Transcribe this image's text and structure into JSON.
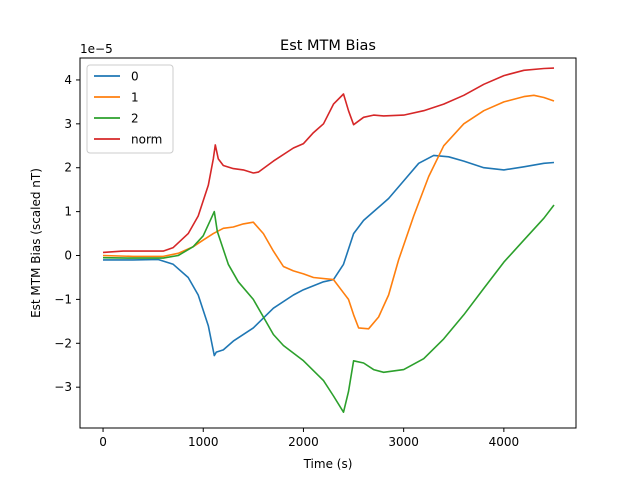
{
  "chart_data": {
    "type": "line",
    "title": "Est MTM Bias",
    "xlabel": "Time (s)",
    "ylabel": "Est MTM Bias (scaled nT)",
    "y_scale_label": "1e−5",
    "xlim": [
      -230,
      4720
    ],
    "ylim": [
      -3.93,
      4.5
    ],
    "x_ticks": [
      0,
      1000,
      2000,
      3000,
      4000
    ],
    "x_tick_labels": [
      "0",
      "1000",
      "2000",
      "3000",
      "4000"
    ],
    "y_ticks": [
      -3,
      -2,
      -1,
      0,
      1,
      2,
      3,
      4
    ],
    "y_tick_labels": [
      "−3",
      "−2",
      "−1",
      "0",
      "1",
      "2",
      "3",
      "4"
    ],
    "grid": false,
    "legend_position": "top-left",
    "series": [
      {
        "name": "0",
        "color": "#1f77b4",
        "points": [
          [
            0,
            -0.1
          ],
          [
            300,
            -0.1
          ],
          [
            550,
            -0.09
          ],
          [
            700,
            -0.2
          ],
          [
            850,
            -0.5
          ],
          [
            950,
            -0.9
          ],
          [
            1050,
            -1.6
          ],
          [
            1110,
            -2.28
          ],
          [
            1130,
            -2.2
          ],
          [
            1200,
            -2.15
          ],
          [
            1300,
            -1.95
          ],
          [
            1500,
            -1.65
          ],
          [
            1700,
            -1.2
          ],
          [
            1900,
            -0.9
          ],
          [
            2000,
            -0.78
          ],
          [
            2200,
            -0.6
          ],
          [
            2300,
            -0.55
          ],
          [
            2400,
            -0.2
          ],
          [
            2500,
            0.5
          ],
          [
            2600,
            0.8
          ],
          [
            2700,
            1.0
          ],
          [
            2850,
            1.3
          ],
          [
            3000,
            1.7
          ],
          [
            3150,
            2.1
          ],
          [
            3300,
            2.28
          ],
          [
            3450,
            2.25
          ],
          [
            3600,
            2.15
          ],
          [
            3800,
            2.0
          ],
          [
            4000,
            1.95
          ],
          [
            4200,
            2.02
          ],
          [
            4400,
            2.1
          ],
          [
            4500,
            2.12
          ]
        ]
      },
      {
        "name": "1",
        "color": "#ff7f0e",
        "points": [
          [
            0,
            0.0
          ],
          [
            300,
            -0.02
          ],
          [
            600,
            -0.02
          ],
          [
            750,
            0.05
          ],
          [
            900,
            0.2
          ],
          [
            1000,
            0.35
          ],
          [
            1100,
            0.5
          ],
          [
            1200,
            0.62
          ],
          [
            1300,
            0.65
          ],
          [
            1400,
            0.72
          ],
          [
            1500,
            0.76
          ],
          [
            1600,
            0.5
          ],
          [
            1700,
            0.1
          ],
          [
            1800,
            -0.25
          ],
          [
            1900,
            -0.35
          ],
          [
            2000,
            -0.42
          ],
          [
            2100,
            -0.5
          ],
          [
            2300,
            -0.55
          ],
          [
            2400,
            -0.85
          ],
          [
            2450,
            -1.0
          ],
          [
            2500,
            -1.35
          ],
          [
            2550,
            -1.65
          ],
          [
            2650,
            -1.67
          ],
          [
            2750,
            -1.4
          ],
          [
            2850,
            -0.9
          ],
          [
            2950,
            -0.1
          ],
          [
            3100,
            0.9
          ],
          [
            3250,
            1.8
          ],
          [
            3400,
            2.5
          ],
          [
            3600,
            3.0
          ],
          [
            3800,
            3.3
          ],
          [
            4000,
            3.5
          ],
          [
            4200,
            3.62
          ],
          [
            4300,
            3.65
          ],
          [
            4400,
            3.6
          ],
          [
            4500,
            3.52
          ]
        ]
      },
      {
        "name": "2",
        "color": "#2ca02c",
        "points": [
          [
            0,
            -0.05
          ],
          [
            300,
            -0.06
          ],
          [
            600,
            -0.06
          ],
          [
            750,
            0.0
          ],
          [
            900,
            0.2
          ],
          [
            1000,
            0.45
          ],
          [
            1080,
            0.85
          ],
          [
            1110,
            1.0
          ],
          [
            1140,
            0.55
          ],
          [
            1250,
            -0.2
          ],
          [
            1350,
            -0.6
          ],
          [
            1500,
            -1.0
          ],
          [
            1600,
            -1.4
          ],
          [
            1700,
            -1.8
          ],
          [
            1800,
            -2.05
          ],
          [
            2000,
            -2.4
          ],
          [
            2200,
            -2.85
          ],
          [
            2300,
            -3.2
          ],
          [
            2400,
            -3.57
          ],
          [
            2450,
            -3.1
          ],
          [
            2500,
            -2.4
          ],
          [
            2600,
            -2.45
          ],
          [
            2700,
            -2.6
          ],
          [
            2800,
            -2.66
          ],
          [
            3000,
            -2.6
          ],
          [
            3200,
            -2.35
          ],
          [
            3400,
            -1.9
          ],
          [
            3600,
            -1.35
          ],
          [
            3800,
            -0.75
          ],
          [
            4000,
            -0.15
          ],
          [
            4200,
            0.35
          ],
          [
            4400,
            0.85
          ],
          [
            4500,
            1.15
          ]
        ]
      },
      {
        "name": "norm",
        "color": "#d62728",
        "points": [
          [
            0,
            0.07
          ],
          [
            200,
            0.1
          ],
          [
            400,
            0.1
          ],
          [
            600,
            0.1
          ],
          [
            700,
            0.18
          ],
          [
            850,
            0.5
          ],
          [
            950,
            0.9
          ],
          [
            1050,
            1.6
          ],
          [
            1100,
            2.2
          ],
          [
            1120,
            2.52
          ],
          [
            1150,
            2.2
          ],
          [
            1200,
            2.05
          ],
          [
            1300,
            1.98
          ],
          [
            1400,
            1.95
          ],
          [
            1500,
            1.88
          ],
          [
            1550,
            1.9
          ],
          [
            1700,
            2.15
          ],
          [
            1900,
            2.45
          ],
          [
            2000,
            2.55
          ],
          [
            2100,
            2.8
          ],
          [
            2200,
            3.0
          ],
          [
            2300,
            3.45
          ],
          [
            2400,
            3.68
          ],
          [
            2450,
            3.3
          ],
          [
            2500,
            2.98
          ],
          [
            2600,
            3.15
          ],
          [
            2700,
            3.2
          ],
          [
            2800,
            3.18
          ],
          [
            3000,
            3.2
          ],
          [
            3200,
            3.3
          ],
          [
            3400,
            3.45
          ],
          [
            3600,
            3.65
          ],
          [
            3800,
            3.9
          ],
          [
            4000,
            4.1
          ],
          [
            4200,
            4.22
          ],
          [
            4400,
            4.26
          ],
          [
            4500,
            4.27
          ]
        ]
      }
    ]
  }
}
